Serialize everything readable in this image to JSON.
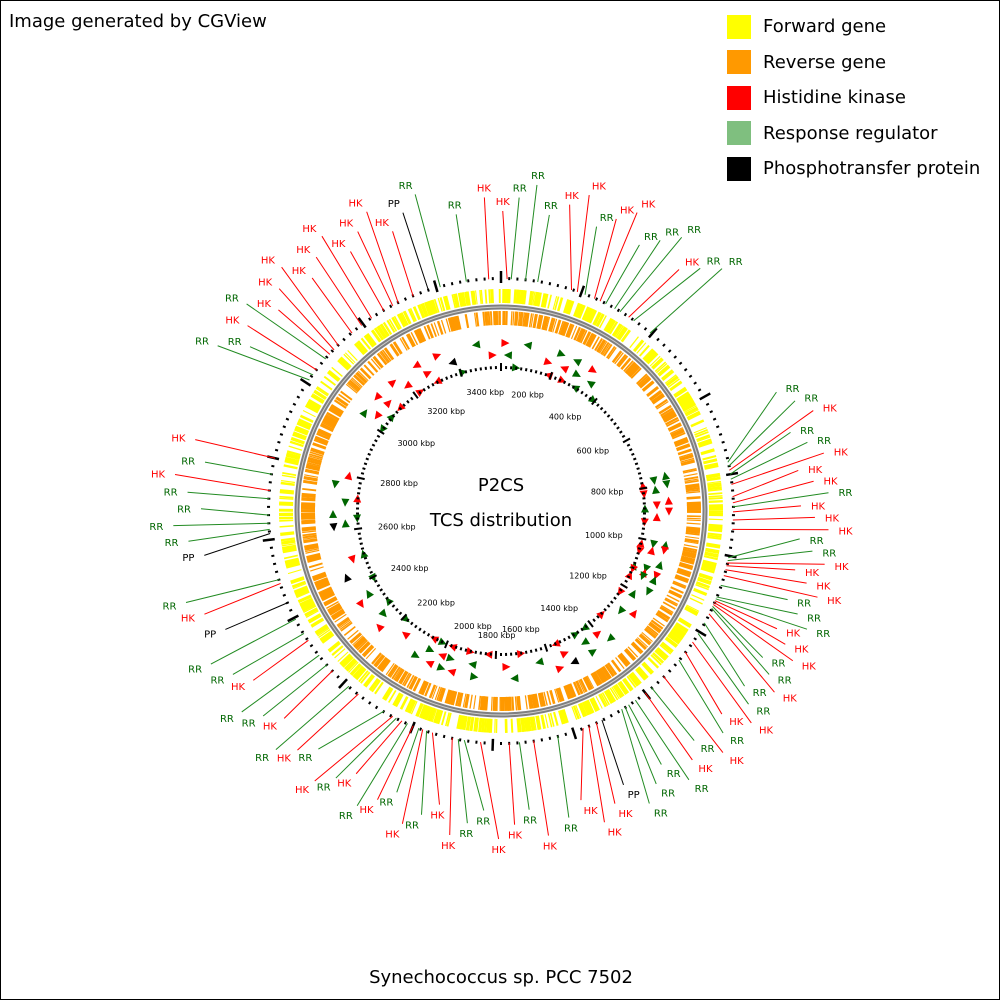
{
  "header": {
    "credit": "Image generated by CGView"
  },
  "legend": [
    {
      "label": "Forward gene",
      "color": "#ffff00"
    },
    {
      "label": "Reverse gene",
      "color": "#ff9900"
    },
    {
      "label": "Histidine kinase",
      "color": "#ff0000"
    },
    {
      "label": "Response regulator",
      "color": "#7fbf7f"
    },
    {
      "label": "Phosphotransfer protein",
      "color": "#000000"
    }
  ],
  "center": {
    "title": "P2CS",
    "subtitle": "TCS distribution"
  },
  "footer": {
    "organism": "Synechococcus sp. PCC 7502"
  },
  "colors": {
    "forward": "#ffff00",
    "reverse": "#ff9900",
    "hk": "#ff0000",
    "rr": "#006600",
    "rr_line": "#228b22",
    "pp": "#000000",
    "backbone": "#808080"
  },
  "genome": {
    "length_kbp": 3560,
    "tick_labels": [
      "200 kbp",
      "400 kbp",
      "600 kbp",
      "800 kbp",
      "1000 kbp",
      "1200 kbp",
      "1400 kbp",
      "1600 kbp",
      "1800 kbp",
      "2000 kbp",
      "2200 kbp",
      "2400 kbp",
      "2600 kbp",
      "2800 kbp",
      "3000 kbp",
      "3200 kbp",
      "3400 kbp"
    ]
  },
  "features": [
    {
      "type": "HK",
      "kbp": 15
    },
    {
      "type": "RR",
      "kbp": 25
    },
    {
      "type": "RR",
      "kbp": 60
    },
    {
      "type": "RR",
      "kbp": 90
    },
    {
      "type": "HK",
      "kbp": 175
    },
    {
      "type": "HK",
      "kbp": 190
    },
    {
      "type": "RR",
      "kbp": 210
    },
    {
      "type": "HK",
      "kbp": 235
    },
    {
      "type": "HK",
      "kbp": 250
    },
    {
      "type": "RR",
      "kbp": 265
    },
    {
      "type": "RR",
      "kbp": 290
    },
    {
      "type": "RR",
      "kbp": 305
    },
    {
      "type": "HK",
      "kbp": 330
    },
    {
      "type": "RR",
      "kbp": 345
    },
    {
      "type": "RR",
      "kbp": 395
    },
    {
      "type": "RR",
      "kbp": 770
    },
    {
      "type": "RR",
      "kbp": 780
    },
    {
      "type": "HK",
      "kbp": 790
    },
    {
      "type": "RR",
      "kbp": 800
    },
    {
      "type": "RR",
      "kbp": 812
    },
    {
      "type": "HK",
      "kbp": 825
    },
    {
      "type": "HK",
      "kbp": 855
    },
    {
      "type": "HK",
      "kbp": 870
    },
    {
      "type": "RR",
      "kbp": 880
    },
    {
      "type": "HK",
      "kbp": 892
    },
    {
      "type": "HK",
      "kbp": 912
    },
    {
      "type": "HK",
      "kbp": 935
    },
    {
      "type": "RR",
      "kbp": 1005
    },
    {
      "type": "RR",
      "kbp": 1012
    },
    {
      "type": "HK",
      "kbp": 1018
    },
    {
      "type": "HK",
      "kbp": 1025
    },
    {
      "type": "HK",
      "kbp": 1035
    },
    {
      "type": "HK",
      "kbp": 1050
    },
    {
      "type": "RR",
      "kbp": 1075
    },
    {
      "type": "RR",
      "kbp": 1105
    },
    {
      "type": "RR",
      "kbp": 1110
    },
    {
      "type": "HK",
      "kbp": 1115
    },
    {
      "type": "HK",
      "kbp": 1120
    },
    {
      "type": "HK",
      "kbp": 1125
    },
    {
      "type": "RR",
      "kbp": 1130
    },
    {
      "type": "RR",
      "kbp": 1135
    },
    {
      "type": "HK",
      "kbp": 1150
    },
    {
      "type": "RR",
      "kbp": 1175
    },
    {
      "type": "RR",
      "kbp": 1205
    },
    {
      "type": "HK",
      "kbp": 1230
    },
    {
      "type": "HK",
      "kbp": 1260
    },
    {
      "type": "RR",
      "kbp": 1285
    },
    {
      "type": "HK",
      "kbp": 1340
    },
    {
      "type": "RR",
      "kbp": 1380
    },
    {
      "type": "HK",
      "kbp": 1400
    },
    {
      "type": "RR",
      "kbp": 1430
    },
    {
      "type": "RR",
      "kbp": 1450
    },
    {
      "type": "RR",
      "kbp": 1460
    },
    {
      "type": "RR",
      "kbp": 1470
    },
    {
      "type": "PP",
      "kbp": 1525
    },
    {
      "type": "HK",
      "kbp": 1540
    },
    {
      "type": "HK",
      "kbp": 1560
    },
    {
      "type": "HK",
      "kbp": 1575
    },
    {
      "type": "RR",
      "kbp": 1640
    },
    {
      "type": "HK",
      "kbp": 1700
    },
    {
      "type": "RR",
      "kbp": 1735
    },
    {
      "type": "HK",
      "kbp": 1760
    },
    {
      "type": "HK",
      "kbp": 1830
    },
    {
      "type": "RR",
      "kbp": 1870
    },
    {
      "type": "RR",
      "kbp": 1885
    },
    {
      "type": "HK",
      "kbp": 1900
    },
    {
      "type": "HK",
      "kbp": 1950
    },
    {
      "type": "RR",
      "kbp": 1965
    },
    {
      "type": "HK",
      "kbp": 1975
    },
    {
      "type": "RR",
      "kbp": 1985
    },
    {
      "type": "HK",
      "kbp": 2000
    },
    {
      "type": "RR",
      "kbp": 2015
    },
    {
      "type": "HK",
      "kbp": 2030
    },
    {
      "type": "RR",
      "kbp": 2045
    },
    {
      "type": "HK",
      "kbp": 2055
    },
    {
      "type": "RR",
      "kbp": 2080
    },
    {
      "type": "HK",
      "kbp": 2155
    },
    {
      "type": "RR",
      "kbp": 2185
    },
    {
      "type": "HK",
      "kbp": 2240
    },
    {
      "type": "RR",
      "kbp": 2260
    },
    {
      "type": "RR",
      "kbp": 2290
    },
    {
      "type": "HK",
      "kbp": 2335
    },
    {
      "type": "RR",
      "kbp": 2355
    },
    {
      "type": "RR",
      "kbp": 2395
    },
    {
      "type": "PP",
      "kbp": 2440
    },
    {
      "type": "HK",
      "kbp": 2490
    },
    {
      "type": "RR",
      "kbp": 2500
    },
    {
      "type": "PP",
      "kbp": 2615
    },
    {
      "type": "RR",
      "kbp": 2625
    },
    {
      "type": "RR",
      "kbp": 2640
    },
    {
      "type": "RR",
      "kbp": 2660
    },
    {
      "type": "RR",
      "kbp": 2700
    },
    {
      "type": "HK",
      "kbp": 2720
    },
    {
      "type": "RR",
      "kbp": 2760
    },
    {
      "type": "HK",
      "kbp": 2800
    },
    {
      "type": "RR",
      "kbp": 3010
    },
    {
      "type": "RR",
      "kbp": 3025
    },
    {
      "type": "HK",
      "kbp": 3040
    },
    {
      "type": "RR",
      "kbp": 3075
    },
    {
      "type": "HK",
      "kbp": 3090
    },
    {
      "type": "HK",
      "kbp": 3105
    },
    {
      "type": "HK",
      "kbp": 3120
    },
    {
      "type": "HK",
      "kbp": 3165
    },
    {
      "type": "HK",
      "kbp": 3195
    },
    {
      "type": "HK",
      "kbp": 3225
    },
    {
      "type": "HK",
      "kbp": 3260
    },
    {
      "type": "HK",
      "kbp": 3285
    },
    {
      "type": "HK",
      "kbp": 3300
    },
    {
      "type": "HK",
      "kbp": 3340
    },
    {
      "type": "PP",
      "kbp": 3380
    },
    {
      "type": "RR",
      "kbp": 3410
    },
    {
      "type": "RR",
      "kbp": 3475
    },
    {
      "type": "HK",
      "kbp": 3530
    }
  ]
}
